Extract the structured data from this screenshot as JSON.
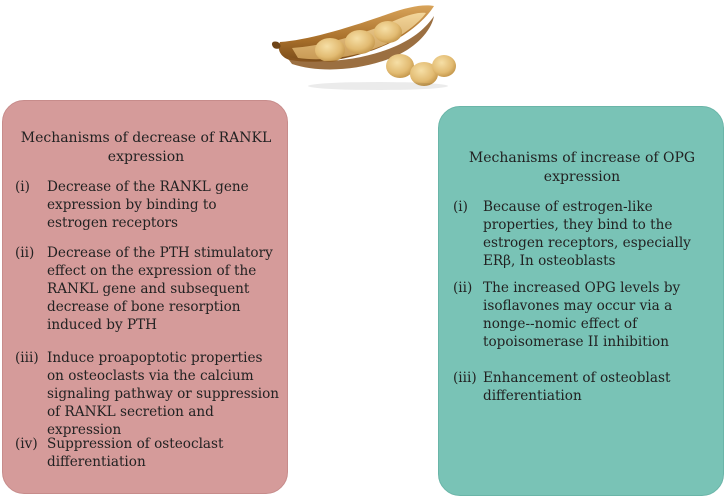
{
  "left_panel": {
    "title": "Mechanisms of decrease of RANKL expression",
    "items": [
      {
        "num": "(i)",
        "text": "Decrease of the RANKL gene expression by binding to estrogen receptors"
      },
      {
        "num": "(ii)",
        "text": "Decrease of the PTH stimulatory effect on the expression of the RANKL gene and subsequent decrease of bone resorption induced by PTH"
      },
      {
        "num": "(iii)",
        "text": "Induce proapoptotic properties on osteoclasts via the calcium signaling pathway or suppression of RANKL secretion and expression"
      },
      {
        "num": "(iv)",
        "text": "Suppression of osteoclast differentiation"
      }
    ]
  },
  "right_panel": {
    "title": "Mechanisms of increase of OPG expression",
    "items": [
      {
        "num": "(i)",
        "text": "Because of estrogen-like properties, they bind to the estrogen receptors, especially ERβ, In osteoblasts"
      },
      {
        "num": "(ii)",
        "text": "The increased OPG levels by isoflavones may occur via a nonge--nomic effect of topoisomerase II inhibition"
      },
      {
        "num": "(iii)",
        "text": "Enhancement of osteoblast differentiation"
      }
    ]
  },
  "colors": {
    "left_panel_bg": "#d59b9a",
    "right_panel_bg": "#79c3b6",
    "pod": "#b07a2e",
    "bean": "#e6c27d"
  },
  "illustration": {
    "icon": "soybean-pod-icon"
  }
}
